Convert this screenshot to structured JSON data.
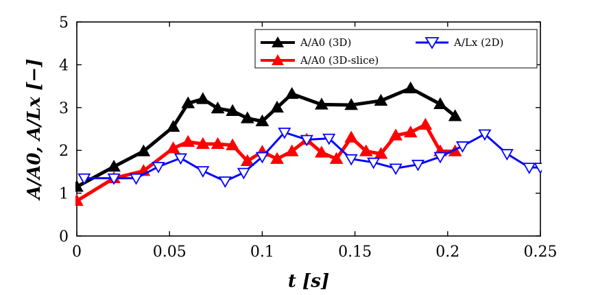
{
  "chart_data": {
    "type": "line",
    "title": "",
    "xlabel": "t [s]",
    "ylabel": "A/A0,  A/Lx [−]",
    "xlim": [
      0,
      0.25
    ],
    "ylim": [
      0,
      5
    ],
    "xticks": [
      "0",
      "0.05",
      "0.1",
      "0.15",
      "0.2",
      "0.25"
    ],
    "yticks": [
      "0",
      "1",
      "2",
      "3",
      "4",
      "5"
    ],
    "grid": false,
    "legend_position": "top-right",
    "series": [
      {
        "name": "A/A0 (3D)",
        "color": "#000000",
        "marker": "triangle-up",
        "x": [
          0,
          0.02,
          0.036,
          0.052,
          0.06,
          0.068,
          0.076,
          0.084,
          0.092,
          0.1,
          0.108,
          0.116,
          0.132,
          0.148,
          0.164,
          0.18,
          0.196,
          0.204
        ],
        "y": [
          1.15,
          1.62,
          1.98,
          2.55,
          3.1,
          3.2,
          2.98,
          2.92,
          2.75,
          2.68,
          3.0,
          3.32,
          3.07,
          3.06,
          3.16,
          3.45,
          3.08,
          2.8
        ]
      },
      {
        "name": "A/A0 (3D-slice)",
        "color": "#ff0000",
        "marker": "triangle-up",
        "x": [
          0,
          0.02,
          0.036,
          0.052,
          0.06,
          0.068,
          0.076,
          0.084,
          0.092,
          0.1,
          0.108,
          0.116,
          0.124,
          0.132,
          0.14,
          0.148,
          0.156,
          0.164,
          0.172,
          0.18,
          0.188,
          0.196,
          0.204
        ],
        "y": [
          0.82,
          1.35,
          1.52,
          2.05,
          2.2,
          2.15,
          2.15,
          2.12,
          1.75,
          1.97,
          1.8,
          1.98,
          2.25,
          1.95,
          1.8,
          2.3,
          1.98,
          1.92,
          2.35,
          2.42,
          2.6,
          1.98,
          1.98
        ]
      },
      {
        "name": "A/Lx (2D)",
        "color": "#0000ff",
        "marker": "triangle-down",
        "x": [
          0.004,
          0.02,
          0.032,
          0.044,
          0.056,
          0.068,
          0.08,
          0.09,
          0.1,
          0.112,
          0.124,
          0.136,
          0.148,
          0.16,
          0.172,
          0.184,
          0.196,
          0.208,
          0.22,
          0.232,
          0.244,
          0.25
        ],
        "y": [
          1.35,
          1.35,
          1.35,
          1.62,
          1.82,
          1.52,
          1.28,
          1.48,
          1.85,
          2.42,
          2.25,
          2.28,
          1.8,
          1.72,
          1.58,
          1.67,
          1.85,
          2.1,
          2.38,
          1.92,
          1.6,
          1.6
        ]
      }
    ]
  }
}
